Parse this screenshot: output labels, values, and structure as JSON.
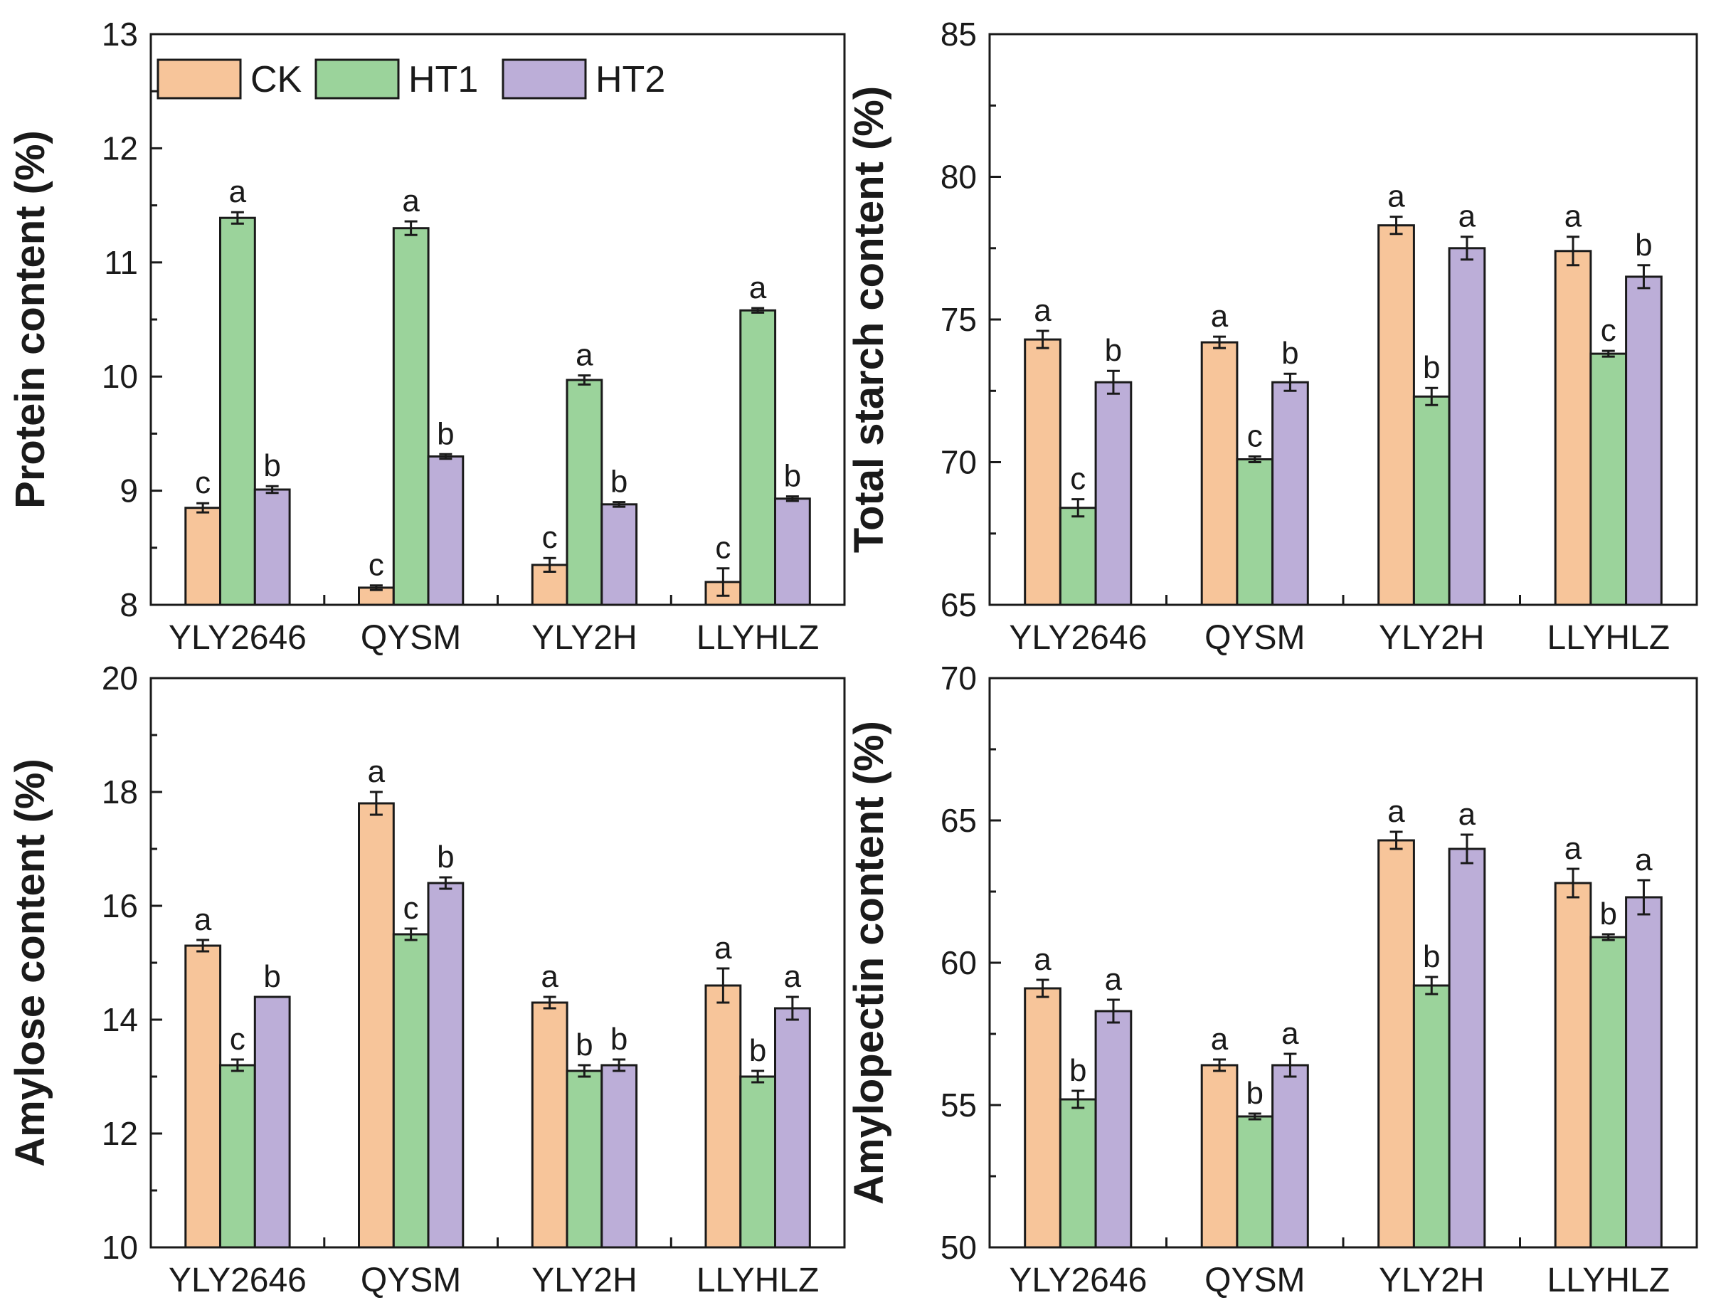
{
  "chart_data": [
    {
      "type": "bar",
      "ylabel": "Protein content (%)",
      "ylim": [
        8,
        13
      ],
      "yticks": [
        8,
        9,
        10,
        11,
        12,
        13
      ],
      "categories": [
        "YLY2646",
        "QYSM",
        "YLY2H",
        "LLYHLZ"
      ],
      "series": [
        {
          "name": "CK",
          "values": [
            8.85,
            8.15,
            8.35,
            8.2
          ],
          "errors": [
            0.04,
            0.02,
            0.06,
            0.12
          ],
          "letters": [
            "c",
            "c",
            "c",
            "c"
          ]
        },
        {
          "name": "HT1",
          "values": [
            11.39,
            11.3,
            9.97,
            10.58
          ],
          "errors": [
            0.05,
            0.06,
            0.04,
            0.02
          ],
          "letters": [
            "a",
            "a",
            "a",
            "a"
          ]
        },
        {
          "name": "HT2",
          "values": [
            9.01,
            9.3,
            8.88,
            8.93
          ],
          "errors": [
            0.03,
            0.02,
            0.02,
            0.02
          ],
          "letters": [
            "b",
            "b",
            "b",
            "b"
          ]
        }
      ],
      "legend": {
        "position": "top-left"
      }
    },
    {
      "type": "bar",
      "ylabel": "Total starch content (%)",
      "ylim": [
        65,
        85
      ],
      "yticks": [
        65,
        70,
        75,
        80,
        85
      ],
      "categories": [
        "YLY2646",
        "QYSM",
        "YLY2H",
        "LLYHLZ"
      ],
      "series": [
        {
          "name": "CK",
          "values": [
            74.3,
            74.2,
            78.3,
            77.4
          ],
          "errors": [
            0.3,
            0.2,
            0.3,
            0.5
          ],
          "letters": [
            "a",
            "a",
            "a",
            "a"
          ]
        },
        {
          "name": "HT1",
          "values": [
            68.4,
            70.1,
            72.3,
            73.8
          ],
          "errors": [
            0.3,
            0.1,
            0.3,
            0.1
          ],
          "letters": [
            "c",
            "c",
            "b",
            "c"
          ]
        },
        {
          "name": "HT2",
          "values": [
            72.8,
            72.8,
            77.5,
            76.5
          ],
          "errors": [
            0.4,
            0.3,
            0.4,
            0.4
          ],
          "letters": [
            "b",
            "b",
            "a",
            "b"
          ]
        }
      ]
    },
    {
      "type": "bar",
      "ylabel": "Amylose content (%)",
      "ylim": [
        10,
        20
      ],
      "yticks": [
        10,
        12,
        14,
        16,
        18,
        20
      ],
      "categories": [
        "YLY2646",
        "QYSM",
        "YLY2H",
        "LLYHLZ"
      ],
      "series": [
        {
          "name": "CK",
          "values": [
            15.3,
            17.8,
            14.3,
            14.6
          ],
          "errors": [
            0.1,
            0.2,
            0.1,
            0.3
          ],
          "letters": [
            "a",
            "a",
            "a",
            "a"
          ]
        },
        {
          "name": "HT1",
          "values": [
            13.2,
            15.5,
            13.1,
            13.0
          ],
          "errors": [
            0.1,
            0.1,
            0.1,
            0.1
          ],
          "letters": [
            "c",
            "c",
            "b",
            "b"
          ]
        },
        {
          "name": "HT2",
          "values": [
            14.4,
            16.4,
            13.2,
            14.2
          ],
          "errors": [
            0.0,
            0.1,
            0.1,
            0.2
          ],
          "letters": [
            "b",
            "b",
            "b",
            "a"
          ]
        }
      ]
    },
    {
      "type": "bar",
      "ylabel": "Amylopectin content (%)",
      "ylim": [
        50,
        70
      ],
      "yticks": [
        50,
        55,
        60,
        65,
        70
      ],
      "categories": [
        "YLY2646",
        "QYSM",
        "YLY2H",
        "LLYHLZ"
      ],
      "series": [
        {
          "name": "CK",
          "values": [
            59.1,
            56.4,
            64.3,
            62.8
          ],
          "errors": [
            0.3,
            0.2,
            0.3,
            0.5
          ],
          "letters": [
            "a",
            "a",
            "a",
            "a"
          ]
        },
        {
          "name": "HT1",
          "values": [
            55.2,
            54.6,
            59.2,
            60.9
          ],
          "errors": [
            0.3,
            0.1,
            0.3,
            0.1
          ],
          "letters": [
            "b",
            "b",
            "b",
            "b"
          ]
        },
        {
          "name": "HT2",
          "values": [
            58.3,
            56.4,
            64.0,
            62.3
          ],
          "errors": [
            0.4,
            0.4,
            0.5,
            0.6
          ],
          "letters": [
            "a",
            "a",
            "a",
            "a"
          ]
        }
      ]
    }
  ],
  "colors": {
    "CK": "#f7c59a",
    "HT1": "#9bd39b",
    "HT2": "#bcaed8",
    "axis": "#1a1a1a",
    "background": "#ffffff"
  }
}
